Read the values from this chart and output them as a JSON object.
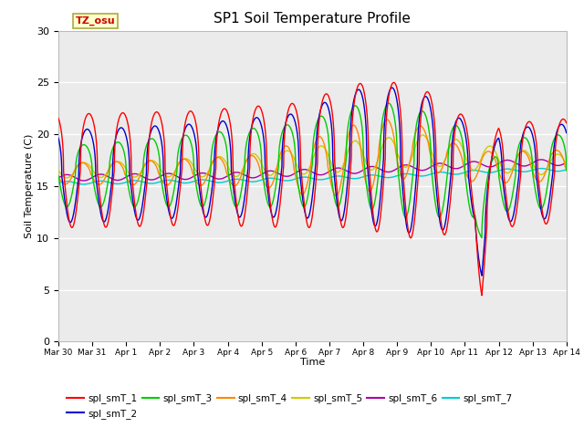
{
  "title": "SP1 Soil Temperature Profile",
  "xlabel": "Time",
  "ylabel": "Soil Temperature (C)",
  "tz_label": "TZ_osu",
  "ylim": [
    0,
    30
  ],
  "x_tick_labels": [
    "Mar 30",
    "Mar 31",
    "Apr 1",
    "Apr 2",
    "Apr 3",
    "Apr 4",
    "Apr 5",
    "Apr 6",
    "Apr 7",
    "Apr 8",
    "Apr 9",
    "Apr 10",
    "Apr 11",
    "Apr 12",
    "Apr 13",
    "Apr 14"
  ],
  "series_colors": {
    "spl_smT_1": "#FF0000",
    "spl_smT_2": "#0000CC",
    "spl_smT_3": "#00CC00",
    "spl_smT_4": "#FF8800",
    "spl_smT_5": "#CCCC00",
    "spl_smT_6": "#AA00AA",
    "spl_smT_7": "#00CCCC"
  },
  "series_labels": [
    "spl_smT_1",
    "spl_smT_2",
    "spl_smT_3",
    "spl_smT_4",
    "spl_smT_5",
    "spl_smT_6",
    "spl_smT_7"
  ],
  "background_color": "#EBEBEB",
  "annotation_box_color": "#FFFFCC",
  "annotation_text_color": "#CC0000",
  "annotation_edge_color": "#AAAA44"
}
